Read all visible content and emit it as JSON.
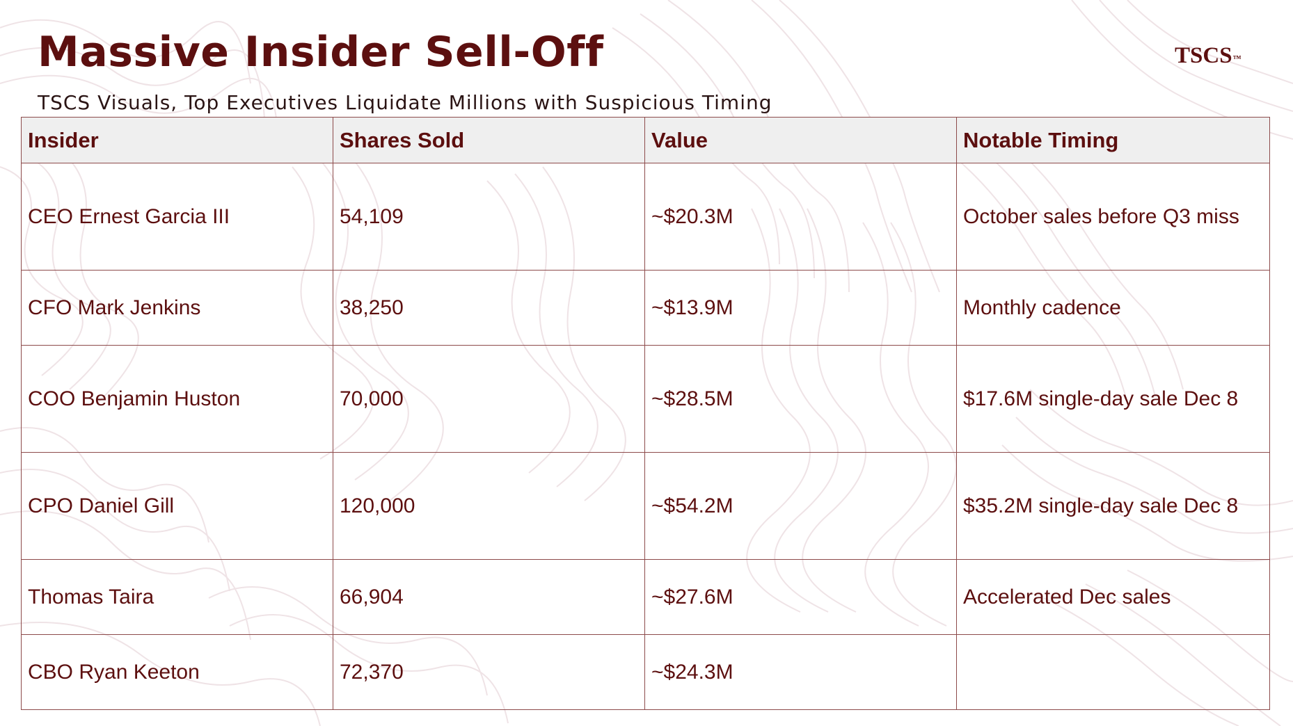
{
  "header": {
    "title": "Massive Insider Sell-Off",
    "subtitle": "TSCS Visuals, Top Executives Liquidate Millions with Suspicious Timing",
    "brand": "TSCS",
    "brand_mark": "™"
  },
  "table": {
    "columns": [
      "Insider",
      "Shares Sold",
      "Value",
      "Notable Timing"
    ],
    "rows": [
      {
        "insider": "CEO Ernest Garcia III",
        "shares_sold": "54,109",
        "value": "~$20.3M",
        "notable_timing": "October sales before Q3 miss"
      },
      {
        "insider": "CFO Mark Jenkins",
        "shares_sold": "38,250",
        "value": "~$13.9M",
        "notable_timing": "Monthly cadence"
      },
      {
        "insider": "COO Benjamin Huston",
        "shares_sold": "70,000",
        "value": "~$28.5M",
        "notable_timing": "$17.6M single-day sale Dec 8"
      },
      {
        "insider": "CPO Daniel Gill",
        "shares_sold": "120,000",
        "value": "~$54.2M",
        "notable_timing": "$35.2M single-day sale Dec 8"
      },
      {
        "insider": "Thomas Taira",
        "shares_sold": "66,904",
        "value": "~$27.6M",
        "notable_timing": "Accelerated Dec sales"
      },
      {
        "insider": "CBO Ryan Keeton",
        "shares_sold": "72,370",
        "value": "~$24.3M",
        "notable_timing": ""
      }
    ]
  },
  "colors": {
    "accent": "#5c0f0f",
    "header_bg": "#efefef",
    "border": "#8c4a4a",
    "pattern": "#efe3e6"
  }
}
